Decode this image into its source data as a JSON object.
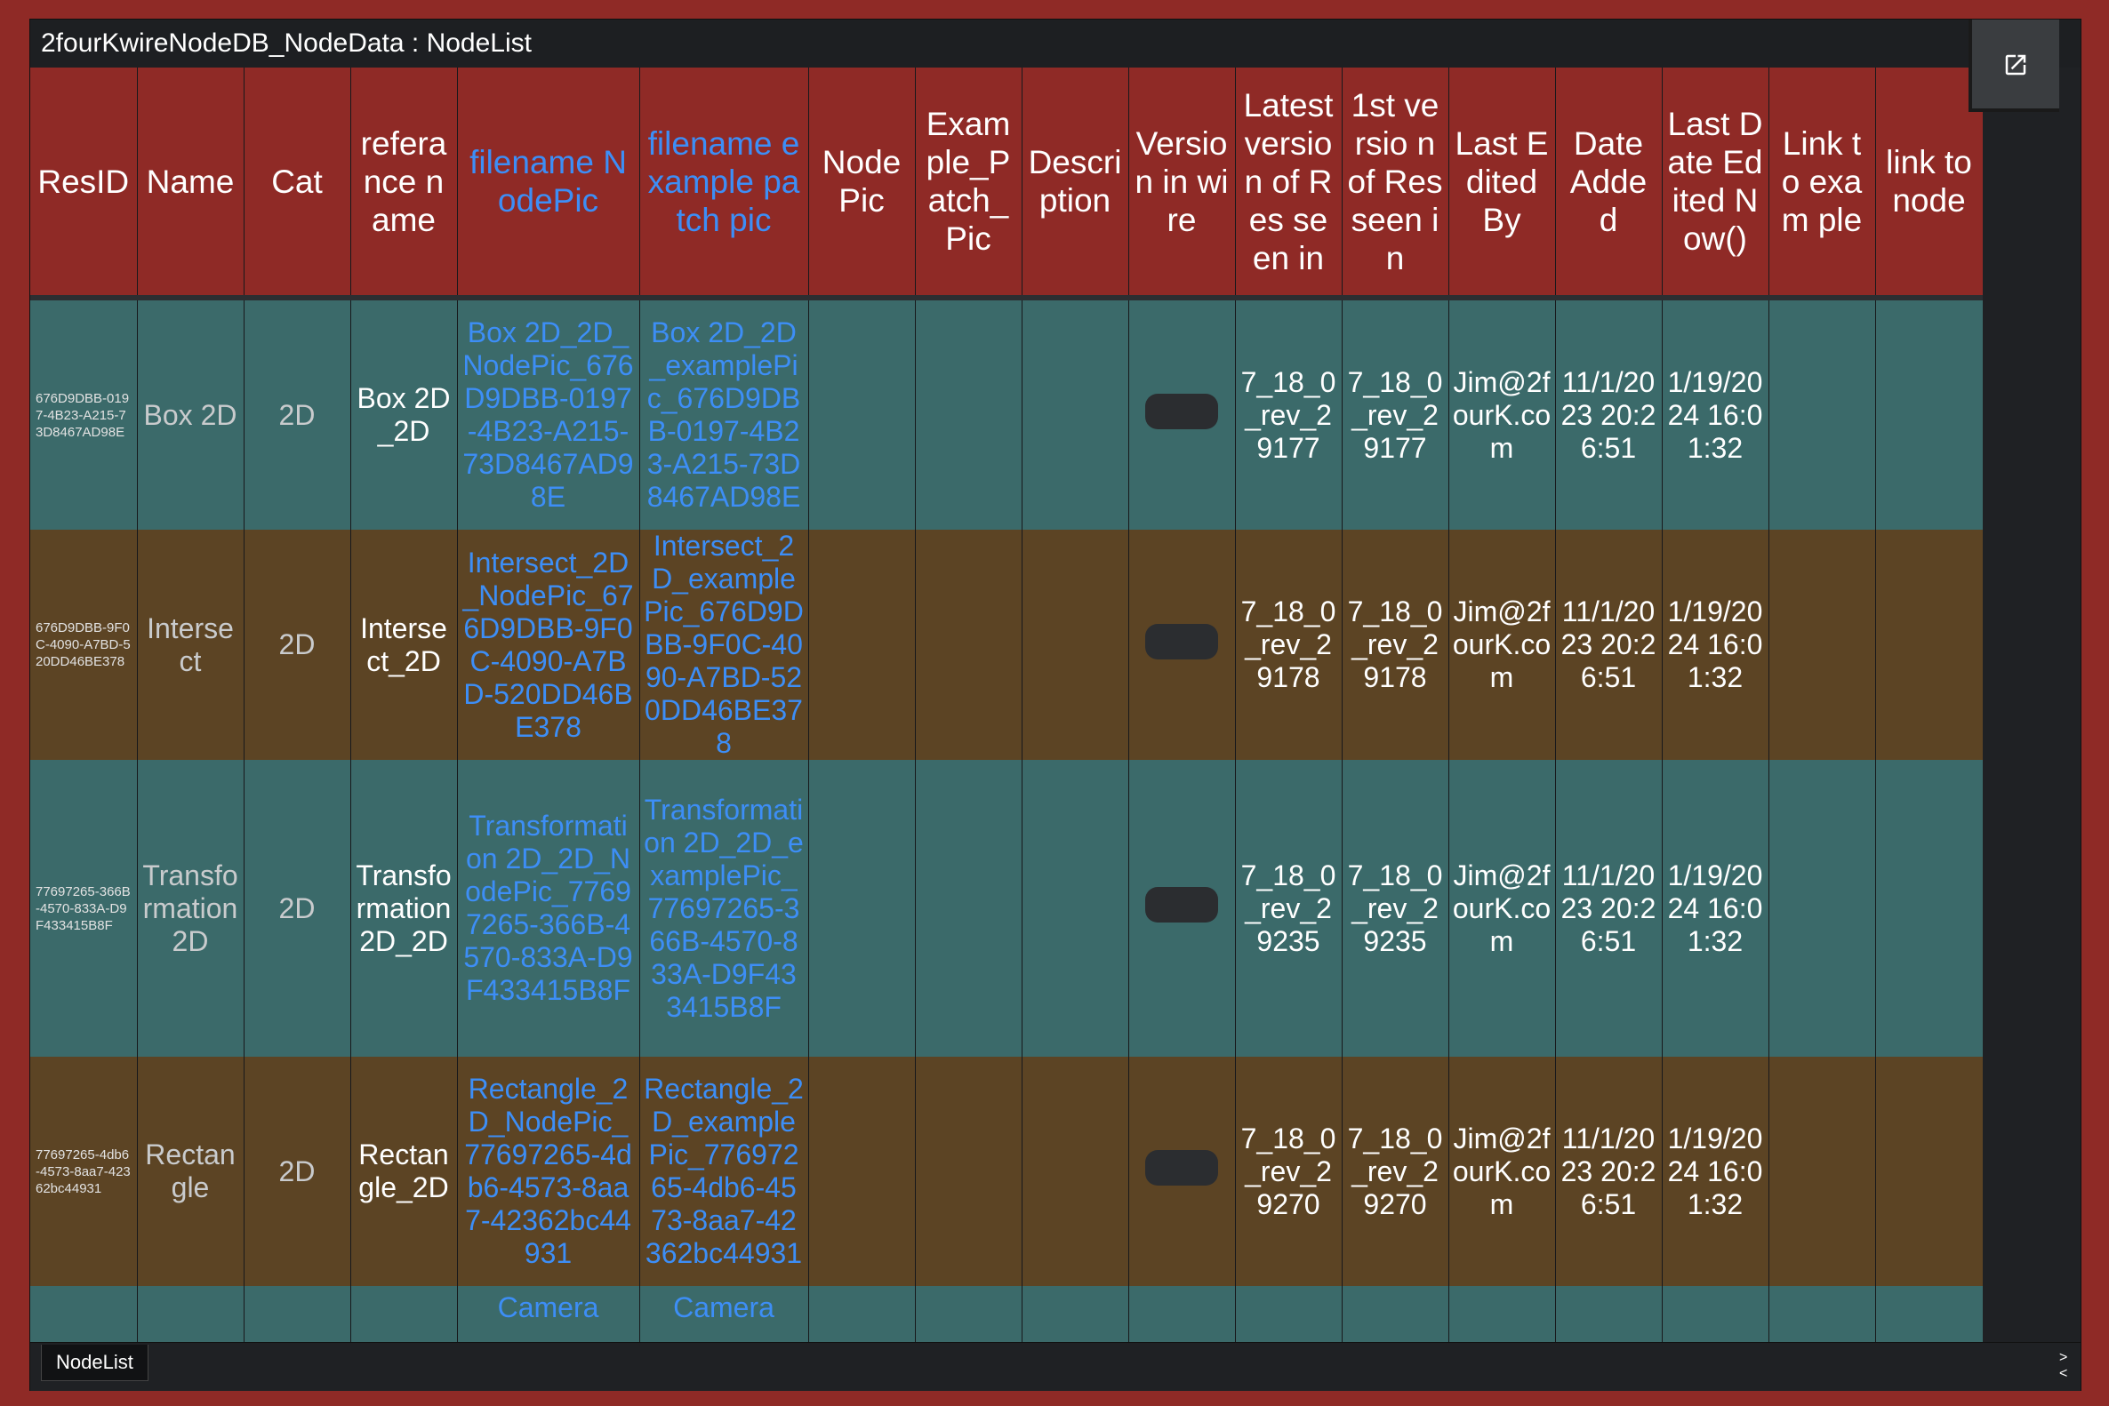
{
  "window": {
    "title": "2fourKwireNodeDB_NodeData : NodeList"
  },
  "columns": [
    {
      "label": "ResID",
      "link": false
    },
    {
      "label": "Name",
      "link": false
    },
    {
      "label": "Cat",
      "link": false
    },
    {
      "label": "refera nce name",
      "link": false
    },
    {
      "label": "filename NodePic",
      "link": true
    },
    {
      "label": "filename example patch pic",
      "link": true
    },
    {
      "label": "Node Pic",
      "link": false
    },
    {
      "label": "Exam ple_P atch_ Pic",
      "link": false
    },
    {
      "label": "Descri ption",
      "link": false
    },
    {
      "label": "Versio n in wire",
      "link": false
    },
    {
      "label": "Latest versio n of Res seen in",
      "link": false
    },
    {
      "label": "1st versio n of Res seen in",
      "link": false
    },
    {
      "label": "Last Edited By",
      "link": false
    },
    {
      "label": "Date Adde d",
      "link": false
    },
    {
      "label": "Last Date Edited Now()",
      "link": false
    },
    {
      "label": "Link to exam ple",
      "link": false
    },
    {
      "label": "link to node",
      "link": false
    }
  ],
  "rows": [
    {
      "resid": "676D9DBB-0197-4B23-A215-73D8467AD98E",
      "name": "Box 2D",
      "cat": "2D",
      "reference_name": "Box 2D_2D",
      "filename_nodepic": "Box 2D_2D_NodePic_676D9DBB-0197-4B23-A215-73D8467AD98E",
      "filename_example": "Box 2D_2D_examplePic_676D9DBB-0197-4B23-A215-73D8467AD98E",
      "latest_version": "7_18_0_rev_29177",
      "first_version": "7_18_0_rev_29177",
      "last_edited_by": "Jim@2fourK.com",
      "date_added": "11/1/2023 20:26:51",
      "last_edited": "1/19/2024 16:01:32"
    },
    {
      "resid": "676D9DBB-9F0C-4090-A7BD-520DD46BE378",
      "name": "Intersect",
      "cat": "2D",
      "reference_name": "Intersect_2D",
      "filename_nodepic": "Intersect_2D_NodePic_676D9DBB-9F0C-4090-A7BD-520DD46BE378",
      "filename_example": "Intersect_2D_examplePic_676D9DBB-9F0C-4090-A7BD-520DD46BE378",
      "latest_version": "7_18_0_rev_29178",
      "first_version": "7_18_0_rev_29178",
      "last_edited_by": "Jim@2fourK.com",
      "date_added": "11/1/2023 20:26:51",
      "last_edited": "1/19/2024 16:01:32"
    },
    {
      "resid": "77697265-366B-4570-833A-D9F433415B8F",
      "name": "Transformation 2D",
      "cat": "2D",
      "reference_name": "Transformation 2D_2D",
      "filename_nodepic": "Transformation 2D_2D_NodePic_77697265-366B-4570-833A-D9F433415B8F",
      "filename_example": "Transformation 2D_2D_examplePic_77697265-366B-4570-833A-D9F433415B8F",
      "latest_version": "7_18_0_rev_29235",
      "first_version": "7_18_0_rev_29235",
      "last_edited_by": "Jim@2fourK.com",
      "date_added": "11/1/2023 20:26:51",
      "last_edited": "1/19/2024 16:01:32"
    },
    {
      "resid": "77697265-4db6-4573-8aa7-42362bc44931",
      "name": "Rectangle",
      "cat": "2D",
      "reference_name": "Rectangle_2D",
      "filename_nodepic": "Rectangle_2D_NodePic_77697265-4db6-4573-8aa7-42362bc44931",
      "filename_example": "Rectangle_2D_examplePic_77697265-4db6-4573-8aa7-42362bc44931",
      "latest_version": "7_18_0_rev_29270",
      "first_version": "7_18_0_rev_29270",
      "last_edited_by": "Jim@2fourK.com",
      "date_added": "11/1/2023 20:26:51",
      "last_edited": "1/19/2024 16:01:32"
    }
  ],
  "partial_row": {
    "filename_nodepic": "Camera",
    "filename_example": "Camera"
  },
  "bottom": {
    "tab_label": "NodeList",
    "scroll_right": ">",
    "scroll_left": "<"
  }
}
